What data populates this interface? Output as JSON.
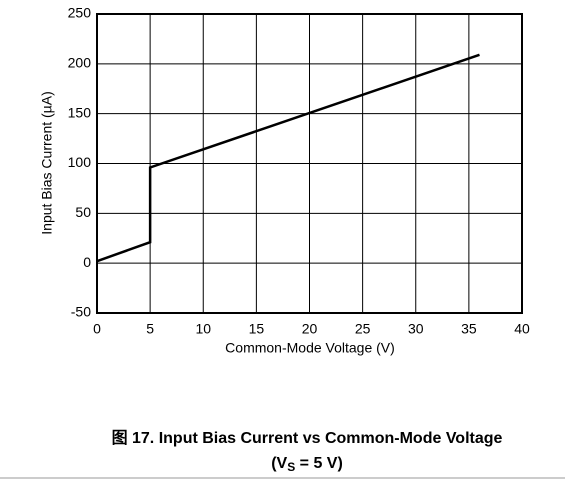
{
  "chart_data": {
    "type": "line",
    "title": "图 17. Input Bias Current vs Common-Mode Voltage",
    "subtitle": {
      "prefix": "(V",
      "subscript": "S",
      "suffix": " = 5 V)"
    },
    "xlabel": "Common-Mode Voltage (V)",
    "ylabel": "Input Bias Current (µA)",
    "x": [
      0,
      5,
      5,
      36
    ],
    "series": [
      {
        "color": "#000000",
        "values": [
          2,
          21,
          96,
          209
        ]
      }
    ],
    "xlim": [
      0,
      40
    ],
    "xticks": [
      0,
      5,
      10,
      15,
      20,
      25,
      30,
      35,
      40
    ],
    "ylim": [
      -50,
      250
    ],
    "yticks": [
      -50,
      0,
      50,
      100,
      150,
      200,
      250
    ],
    "grid": true
  }
}
